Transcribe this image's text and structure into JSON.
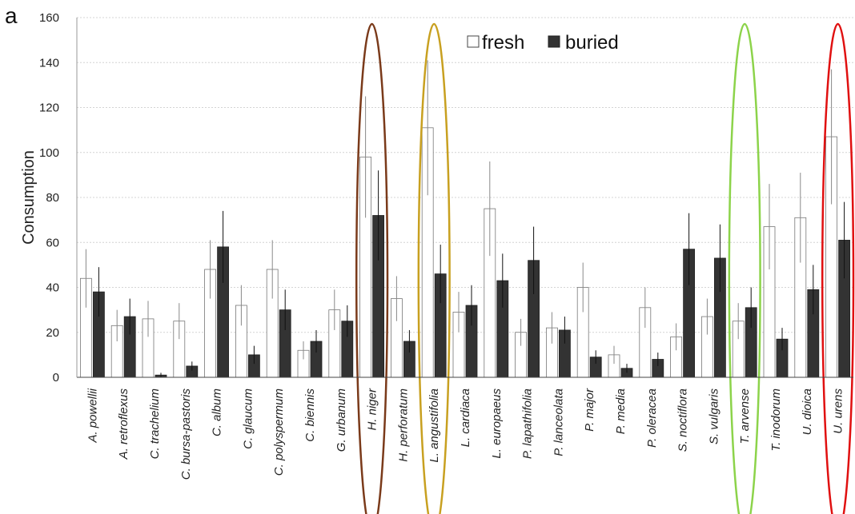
{
  "chart_data": {
    "type": "bar",
    "panel_label": "a",
    "title": "",
    "xlabel": "",
    "ylabel": "Consumption",
    "ylim": [
      0,
      160
    ],
    "yticks": [
      0,
      20,
      40,
      60,
      80,
      100,
      120,
      140,
      160
    ],
    "grid": true,
    "legend_position": "top-center",
    "categories": [
      "A. powellii",
      "A. retroflexus",
      "C. trachelium",
      "C. bursa-pastoris",
      "C. album",
      "C. glaucum",
      "C. polyspermum",
      "C. biennis",
      "G. urbanum",
      "H. niger",
      "H. perforatum",
      "L. angustifolia",
      "L. cardiaca",
      "L. europaeus",
      "P. lapathifolia",
      "P. lanceolata",
      "P. major",
      "P. media",
      "P. oleracea",
      "S. noctiflora",
      "S. vulgaris",
      "T. arvense",
      "T. inodorum",
      "U. dioica",
      "U. urens"
    ],
    "series": [
      {
        "name": "fresh",
        "color": "#ffffff",
        "values": [
          44,
          23,
          26,
          25,
          48,
          32,
          48,
          12,
          30,
          98,
          35,
          111,
          29,
          75,
          20,
          22,
          40,
          10,
          31,
          18,
          27,
          25,
          67,
          71,
          107
        ],
        "errors": [
          13,
          7,
          8,
          8,
          13,
          9,
          13,
          4,
          9,
          27,
          10,
          30,
          9,
          21,
          6,
          7,
          11,
          4,
          9,
          6,
          8,
          8,
          19,
          20,
          30
        ]
      },
      {
        "name": "buried",
        "color": "#333333",
        "values": [
          38,
          27,
          1,
          5,
          58,
          10,
          30,
          16,
          25,
          72,
          16,
          46,
          32,
          43,
          52,
          21,
          9,
          4,
          8,
          57,
          53,
          31,
          17,
          39,
          61
        ],
        "errors": [
          11,
          8,
          1,
          2,
          16,
          4,
          9,
          5,
          7,
          20,
          5,
          13,
          9,
          12,
          15,
          6,
          3,
          2,
          3,
          16,
          15,
          9,
          5,
          11,
          17
        ]
      }
    ],
    "highlights": [
      {
        "category": "H. niger",
        "color": "#7a3a1a"
      },
      {
        "category": "L. angustifolia",
        "color": "#c8a020"
      },
      {
        "category": "T. arvense",
        "color": "#8cd34a"
      },
      {
        "category": "U. urens",
        "color": "#e01010"
      }
    ]
  }
}
